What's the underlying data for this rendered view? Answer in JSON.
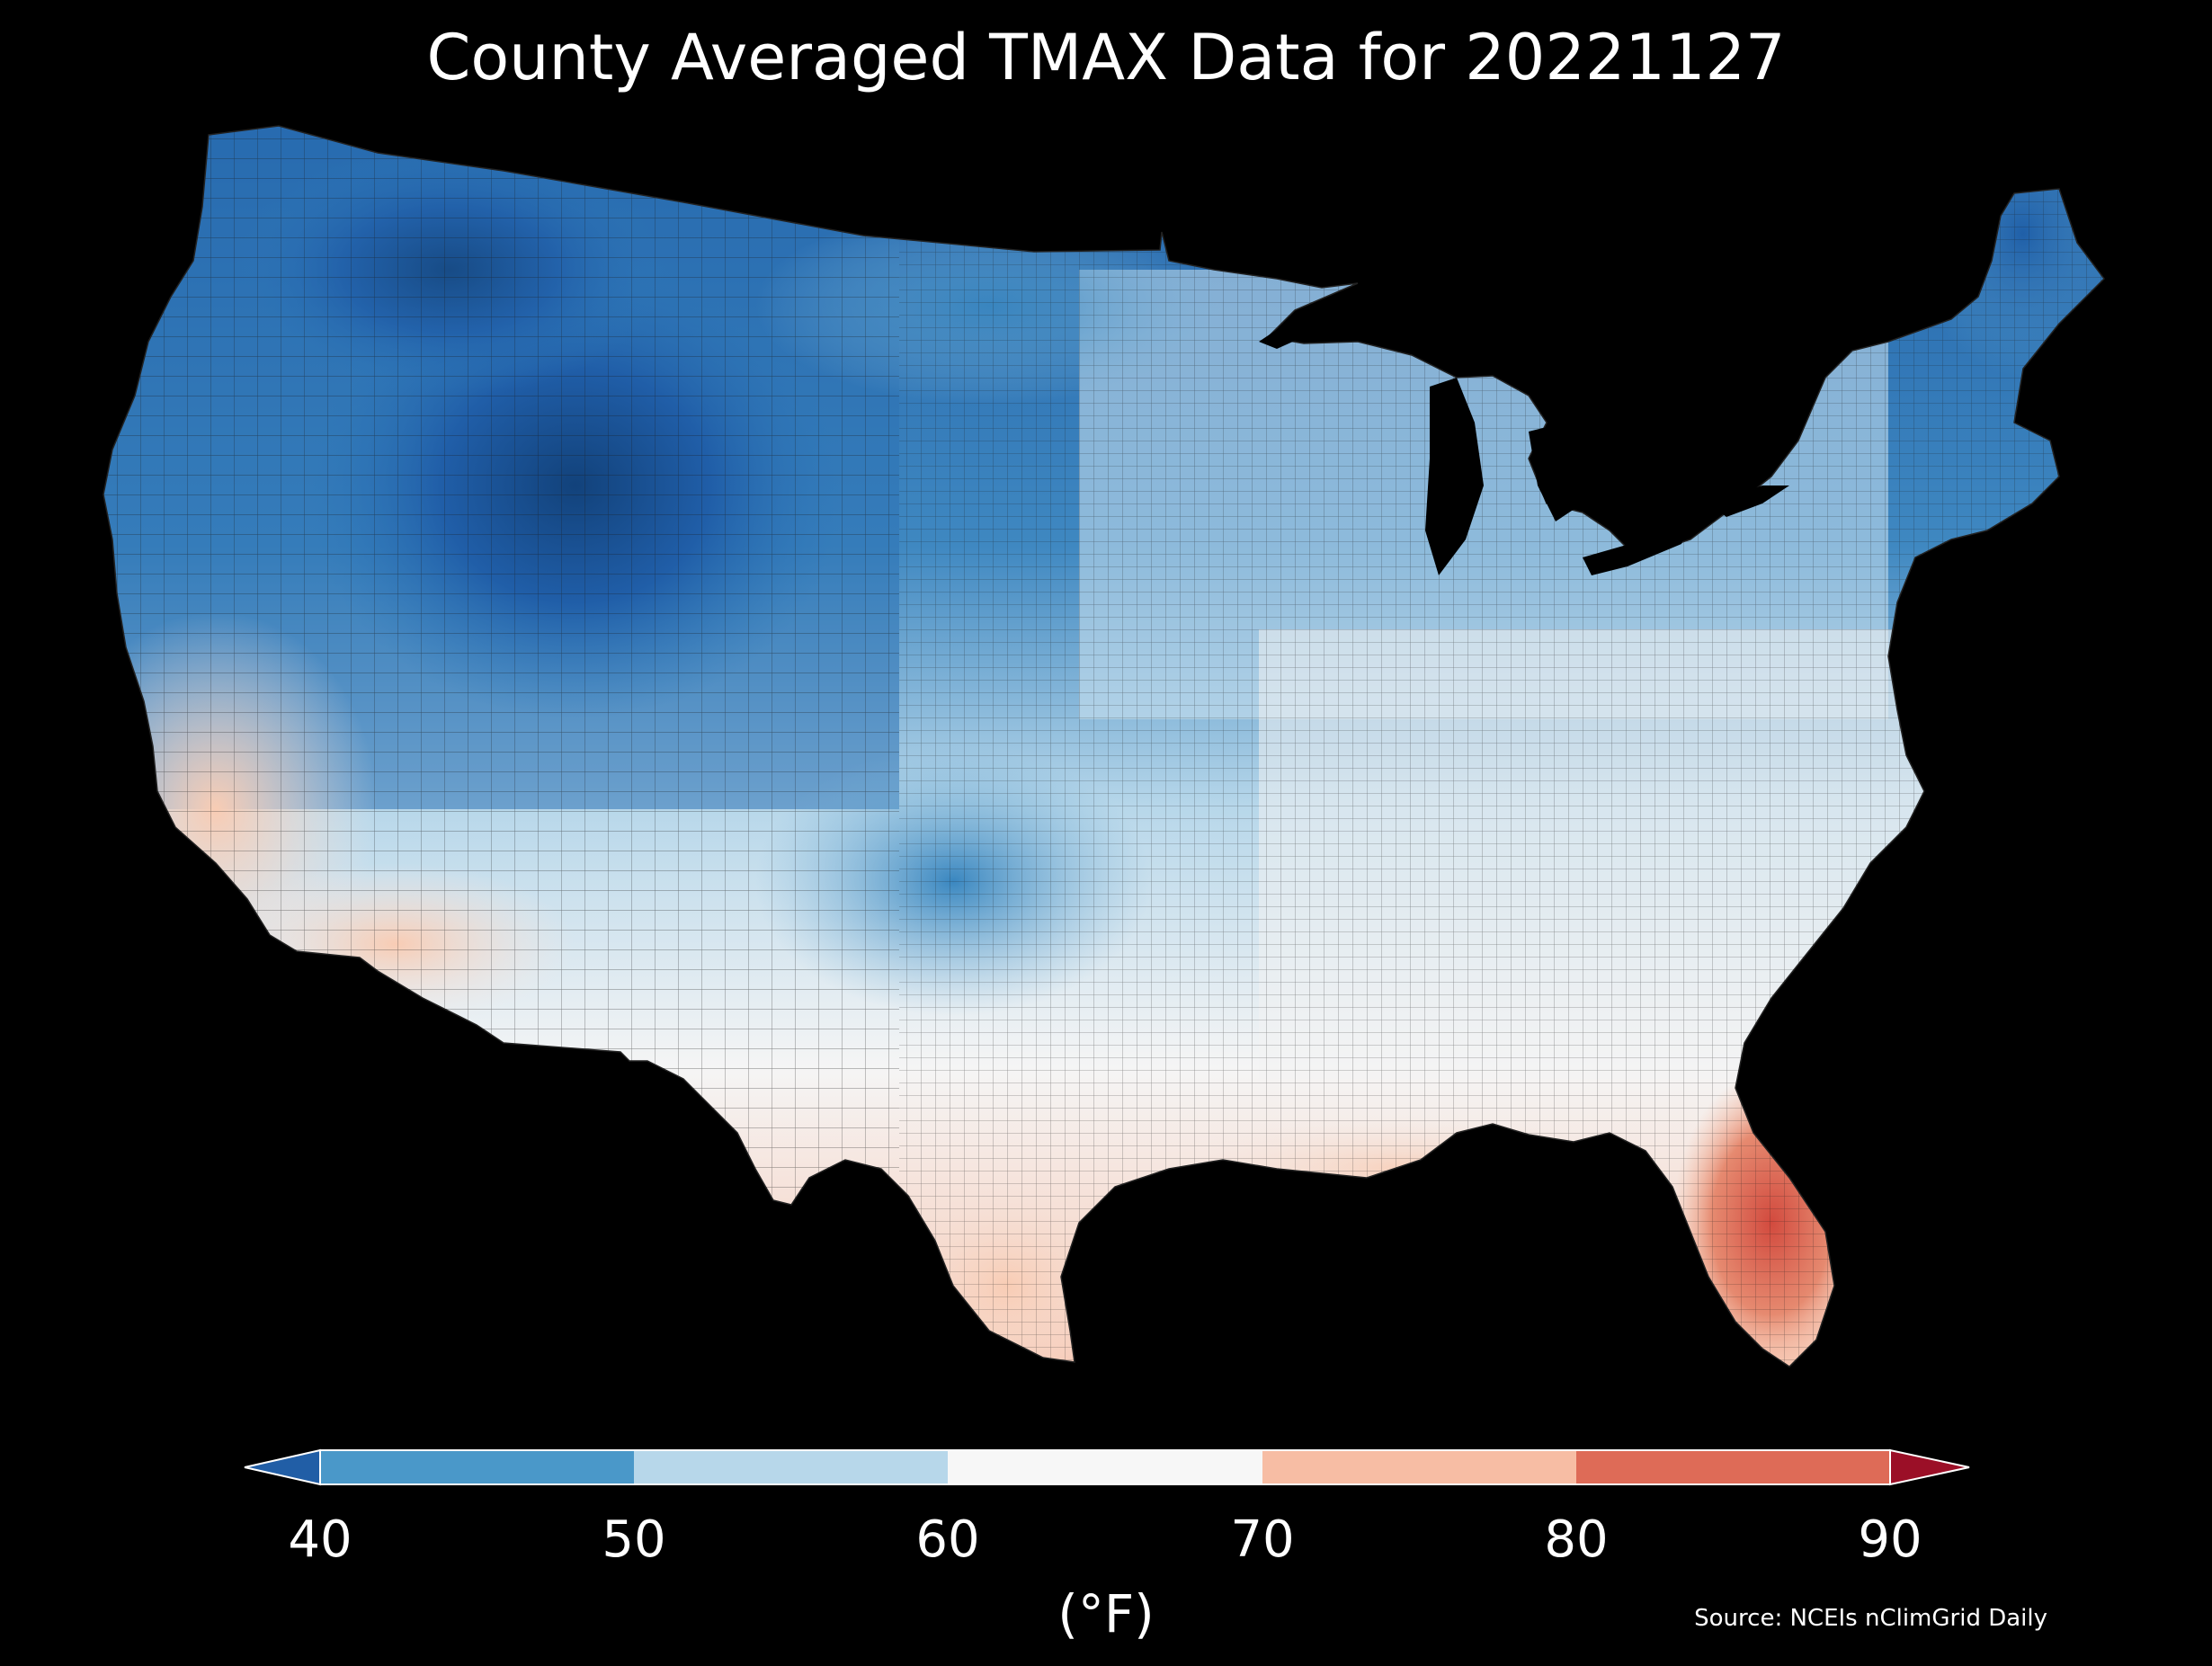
{
  "title": "County Averaged TMAX Data for 20221127",
  "colorbar": {
    "ticks": [
      "40",
      "50",
      "60",
      "70",
      "80",
      "90"
    ],
    "bins": [
      {
        "from": 40,
        "to": 50,
        "color": "#4a98c9"
      },
      {
        "from": 50,
        "to": 60,
        "color": "#b7d7ea"
      },
      {
        "from": 60,
        "to": 70,
        "color": "#f7f7f7"
      },
      {
        "from": 70,
        "to": 80,
        "color": "#f7bda4"
      },
      {
        "from": 80,
        "to": 90,
        "color": "#de6b57"
      }
    ],
    "under_color": "#215ea6",
    "over_color": "#9b0f27",
    "unit": "(°F)",
    "range": [
      40,
      90
    ]
  },
  "source": "Source: NCEIs nClimGrid Daily",
  "map": {
    "region": "contiguous-united-states",
    "background": "#000000",
    "water_color": "#000000",
    "county_border_color": "#1a1a1a"
  }
}
